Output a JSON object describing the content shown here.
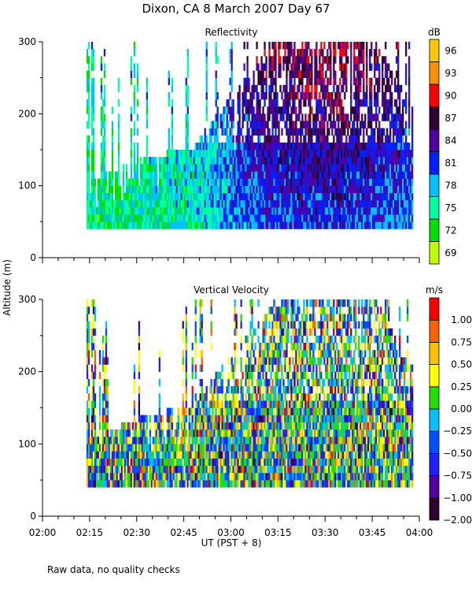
{
  "title": "Dixon, CA   8 March 2007   Day   67",
  "footnote": "Raw data, no quality checks",
  "chart_data": [
    {
      "type": "heatmap",
      "title": "Reflectivity",
      "xlabel": "UT   (PST + 8)",
      "ylabel": "Altitude (m)",
      "xlim": [
        "02:00",
        "04:00"
      ],
      "ylim": [
        0,
        300
      ],
      "xticks": [
        "02:00",
        "02:15",
        "02:30",
        "02:45",
        "03:00",
        "03:15",
        "03:30",
        "03:45",
        "04:00"
      ],
      "yticks": [
        "0",
        "100",
        "200",
        "300"
      ],
      "data_time_range": [
        "02:14",
        "03:58"
      ],
      "data_min_altitude": 40,
      "colorbar": {
        "unit": "dB",
        "labels": [
          "69",
          "72",
          "75",
          "78",
          "81",
          "84",
          "87",
          "90",
          "93",
          "96"
        ],
        "colors": [
          "#c0ff00",
          "#00e000",
          "#00ffa0",
          "#00c0ff",
          "#0020ff",
          "#5000a0",
          "#300030",
          "#ff0000",
          "#ff9000",
          "#ffc800"
        ]
      },
      "envelope": [
        {
          "t": "02:14",
          "top": 100,
          "mean": 74
        },
        {
          "t": "02:30",
          "top": 130,
          "mean": 75
        },
        {
          "t": "02:48",
          "top": 150,
          "mean": 76
        },
        {
          "t": "03:00",
          "top": 220,
          "mean": 79
        },
        {
          "t": "03:15",
          "top": 300,
          "mean": 81
        },
        {
          "t": "03:30",
          "top": 300,
          "mean": 82
        },
        {
          "t": "03:45",
          "top": 300,
          "mean": 81
        },
        {
          "t": "03:58",
          "top": 200,
          "mean": 79
        }
      ]
    },
    {
      "type": "heatmap",
      "title": "Vertical Velocity",
      "xlabel": "UT   (PST + 8)",
      "ylabel": "Altitude (m)",
      "xlim": [
        "02:00",
        "04:00"
      ],
      "ylim": [
        0,
        300
      ],
      "xticks": [
        "02:00",
        "02:15",
        "02:30",
        "02:45",
        "03:00",
        "03:15",
        "03:30",
        "03:45",
        "04:00"
      ],
      "yticks": [
        "0",
        "100",
        "200",
        "300"
      ],
      "data_time_range": [
        "02:14",
        "03:58"
      ],
      "data_min_altitude": 40,
      "colorbar": {
        "unit": "m/s",
        "labels": [
          "-2.00",
          "-1.00",
          "-0.75",
          "-0.50",
          "-0.25",
          "0.00",
          "0.25",
          "0.50",
          "0.75",
          "1.00"
        ],
        "colors": [
          "#300030",
          "#5000a0",
          "#2020ff",
          "#0050ff",
          "#00c0ff",
          "#20e000",
          "#ffff00",
          "#ffc000",
          "#ff6000",
          "#ff0000"
        ]
      }
    }
  ]
}
